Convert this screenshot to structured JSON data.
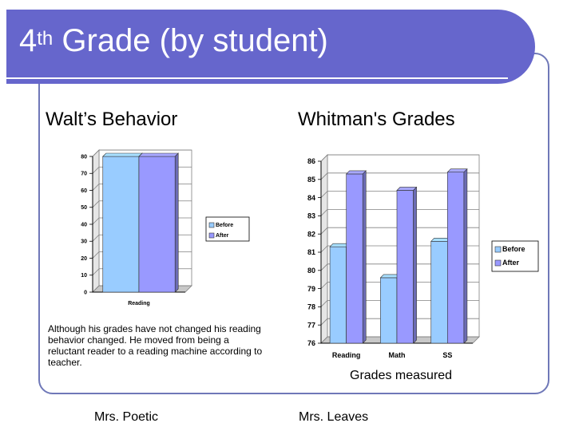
{
  "slide": {
    "title_number": "4",
    "title_suffix": "th",
    "title_rest": " Grade (by student)",
    "left_heading": "Walt’s Behavior",
    "right_heading": "Whitman's Grades",
    "note": "Although his grades have not changed his reading behavior changed.  He moved from being a reluctant reader to a reading machine according to teacher.",
    "left_signature": "Mrs. Poetic",
    "right_signature": "Mrs. Leaves",
    "x_axis_caption": "Grades measured"
  },
  "colors": {
    "title_bar": "#6666cc",
    "before": "#99ccff",
    "after": "#9999ff"
  },
  "chart_data": [
    {
      "type": "bar",
      "title": "",
      "categories": [
        "Reading"
      ],
      "series": [
        {
          "name": "Before",
          "values": [
            80
          ]
        },
        {
          "name": "After",
          "values": [
            80
          ]
        }
      ],
      "ylim": [
        0,
        80
      ],
      "yticks": [
        0,
        10,
        20,
        30,
        40,
        50,
        60,
        70,
        80
      ],
      "grid": true,
      "legend": "right"
    },
    {
      "type": "bar",
      "title": "",
      "categories": [
        "Reading",
        "Math",
        "SS"
      ],
      "series": [
        {
          "name": "Before",
          "values": [
            81.3,
            79.6,
            81.6
          ]
        },
        {
          "name": "After",
          "values": [
            85.3,
            84.4,
            85.4
          ]
        }
      ],
      "ylim": [
        76,
        86
      ],
      "yticks": [
        76,
        77,
        78,
        79,
        80,
        81,
        82,
        83,
        84,
        85,
        86
      ],
      "grid": true,
      "legend": "right"
    }
  ]
}
